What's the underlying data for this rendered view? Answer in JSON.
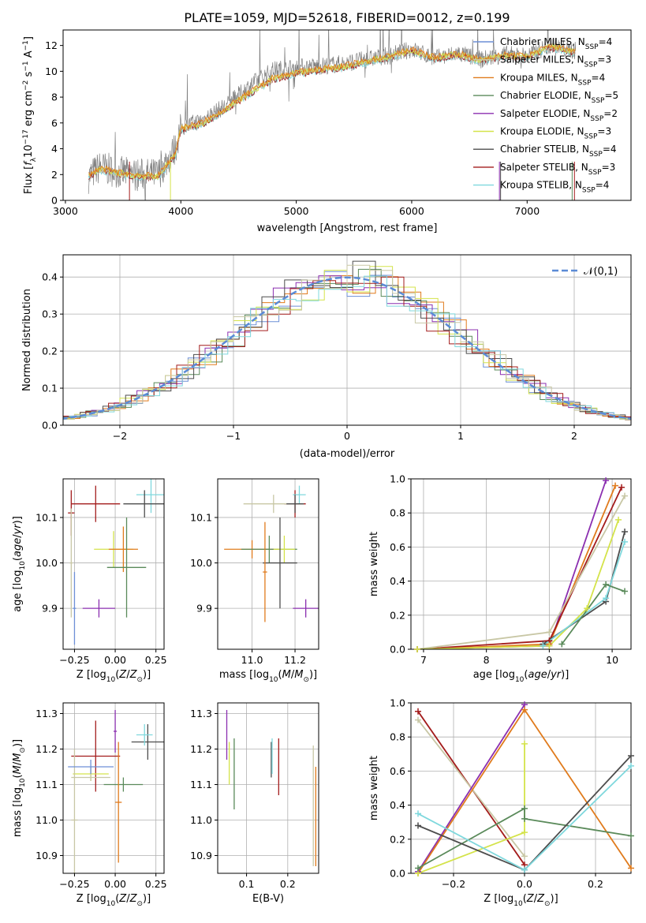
{
  "title": "PLATE=1059, MJD=52618, FIBERID=0012, z=0.199",
  "models": [
    {
      "name": "Chabrier MILES",
      "n": "4",
      "color": "#6d8fd6"
    },
    {
      "name": "Salpeter MILES",
      "n": "3",
      "color": "#c8c7a5"
    },
    {
      "name": "Kroupa MILES",
      "n": "4",
      "color": "#e07b1d"
    },
    {
      "name": "Chabrier ELODIE",
      "n": "5",
      "color": "#5a8a5a"
    },
    {
      "name": "Salpeter ELODIE",
      "n": "2",
      "color": "#8b2fb0"
    },
    {
      "name": "Kroupa ELODIE",
      "n": "3",
      "color": "#d4e34a"
    },
    {
      "name": "Chabrier STELIB",
      "n": "4",
      "color": "#4d4d4d"
    },
    {
      "name": "Salpeter STELIB",
      "n": "3",
      "color": "#a31c1c"
    },
    {
      "name": "Kroupa STELIB",
      "n": "4",
      "color": "#7fd8dd"
    }
  ],
  "chart_data": [
    {
      "type": "line",
      "xlabel": "wavelength [Angstrom, rest frame]",
      "ylabel": "Flux [f_λ 10^-17 erg cm^-2 s^-1 A^-1]",
      "xlim": [
        2980,
        7900
      ],
      "ylim": [
        0,
        13.2
      ],
      "xticks": [
        3000,
        4000,
        5000,
        6000,
        7000
      ],
      "yticks": [
        0,
        2,
        4,
        6,
        8,
        10,
        12
      ],
      "legend": "right",
      "data_spectrum": {
        "x": [
          3200,
          3300,
          3450,
          3600,
          3800,
          3950,
          4000,
          4200,
          4400,
          4600,
          4800,
          5000,
          5200,
          5400,
          5600,
          5800,
          6000,
          6200,
          6400,
          6600,
          6800,
          7000,
          7200,
          7400
        ],
        "y": [
          1.8,
          2.6,
          2.2,
          2.0,
          2.0,
          4.0,
          5.6,
          6.3,
          7.4,
          8.9,
          10.1,
          10.3,
          10.4,
          10.6,
          10.9,
          11.2,
          11.7,
          11.0,
          11.4,
          10.9,
          11.3,
          11.2,
          12.0,
          11.6
        ]
      },
      "model_spectrum": {
        "x": [
          3200,
          3300,
          3450,
          3600,
          3800,
          3950,
          4000,
          4200,
          4400,
          4600,
          4800,
          5000,
          5200,
          5400,
          5600,
          5800,
          6000,
          6200,
          6400,
          6600,
          6800,
          7000,
          7200,
          7400
        ],
        "y": [
          1.9,
          2.4,
          2.1,
          1.9,
          1.8,
          3.5,
          5.5,
          6.0,
          7.1,
          8.3,
          9.4,
          9.8,
          10.1,
          10.3,
          10.7,
          11.1,
          11.6,
          11.0,
          11.3,
          10.8,
          11.2,
          11.1,
          11.9,
          11.5
        ]
      }
    },
    {
      "type": "histogram",
      "xlabel": "(data-model)/error",
      "ylabel": "Normed distribution",
      "xlim": [
        -2.5,
        2.5
      ],
      "ylim": [
        0,
        0.46
      ],
      "xticks": [
        -2,
        -1,
        0,
        1,
        2
      ],
      "yticks": [
        0,
        0.1,
        0.2,
        0.3,
        0.4
      ],
      "gaussian_label": "𝒩(0,1)",
      "legend": "top-right"
    },
    {
      "type": "scatter",
      "xlabel": "Z [log10(Z/Z⊙)]",
      "ylabel": "age  [log10(age/yr)]",
      "xlim": [
        -0.32,
        0.3
      ],
      "ylim": [
        9.81,
        10.185
      ],
      "xticks": [
        -0.25,
        0.0,
        0.25
      ],
      "yticks": [
        9.9,
        10.0,
        10.1
      ],
      "points": [
        {
          "x": -0.12,
          "y": 10.13,
          "xe": 0.15,
          "ye": 0.04,
          "c": 7
        },
        {
          "x": 0.22,
          "y": 10.15,
          "xe": 0.09,
          "ye": 0.04,
          "c": 8
        },
        {
          "x": 0.18,
          "y": 10.13,
          "xe": 0.13,
          "ye": 0.03,
          "c": 6
        },
        {
          "x": -0.27,
          "y": 10.11,
          "xe": 0.02,
          "ye": 0.05,
          "c": 7
        },
        {
          "x": -0.01,
          "y": 10.03,
          "xe": 0.12,
          "ye": 0.04,
          "c": 5
        },
        {
          "x": 0.05,
          "y": 10.03,
          "xe": 0.09,
          "ye": 0.05,
          "c": 2
        },
        {
          "x": 0.07,
          "y": 9.99,
          "xe": 0.12,
          "ye": 0.11,
          "c": 3
        },
        {
          "x": -0.25,
          "y": 9.9,
          "xe": 0.01,
          "ye": 0.08,
          "c": 0
        },
        {
          "x": -0.1,
          "y": 9.9,
          "xe": 0.1,
          "ye": 0.02,
          "c": 4
        },
        {
          "x": -0.27,
          "y": 10.0,
          "xe": 0.01,
          "ye": 0.12,
          "c": 1
        }
      ]
    },
    {
      "type": "scatter",
      "xlabel": "mass [log10(M/M⊙)]",
      "ylabel": "",
      "xlim": [
        10.84,
        11.31
      ],
      "ylim": [
        9.81,
        10.185
      ],
      "xticks": [
        11.0,
        11.2
      ],
      "yticks": [
        9.9,
        10.0,
        10.1
      ],
      "points": [
        {
          "x": 11.2,
          "y": 10.13,
          "xe": 0.05,
          "ye": 0.03,
          "c": 7
        },
        {
          "x": 11.22,
          "y": 10.15,
          "xe": 0.03,
          "ye": 0.02,
          "c": 8
        },
        {
          "x": 11.1,
          "y": 10.13,
          "xe": 0.14,
          "ye": 0.02,
          "c": 1
        },
        {
          "x": 11.2,
          "y": 10.13,
          "xe": 0.04,
          "ye": 0.02,
          "c": 6
        },
        {
          "x": 11.0,
          "y": 10.03,
          "xe": 0.13,
          "ye": 0.02,
          "c": 2
        },
        {
          "x": 11.08,
          "y": 10.03,
          "xe": 0.13,
          "ye": 0.03,
          "c": 3
        },
        {
          "x": 11.15,
          "y": 10.03,
          "xe": 0.05,
          "ye": 0.03,
          "c": 5
        },
        {
          "x": 11.13,
          "y": 10.0,
          "xe": 0.08,
          "ye": 0.1,
          "c": 6
        },
        {
          "x": 11.06,
          "y": 9.98,
          "xe": 0.01,
          "ye": 0.11,
          "c": 2
        },
        {
          "x": 11.25,
          "y": 9.9,
          "xe": 0.06,
          "ye": 0.02,
          "c": 4
        }
      ]
    },
    {
      "type": "line",
      "xlabel": "age  [log10(age/yr)]",
      "ylabel": "mass weight",
      "xlim": [
        6.8,
        10.3
      ],
      "ylim": [
        0,
        1
      ],
      "xticks": [
        7,
        8,
        9,
        10
      ],
      "yticks": [
        0.0,
        0.2,
        0.4,
        0.6,
        0.8,
        1.0
      ],
      "series": [
        {
          "c": 4,
          "x": [
            6.9,
            9.0,
            9.9
          ],
          "y": [
            0.0,
            0.02,
            0.99
          ]
        },
        {
          "c": 2,
          "x": [
            6.9,
            9.0,
            10.05
          ],
          "y": [
            0.0,
            0.03,
            0.96
          ]
        },
        {
          "c": 7,
          "x": [
            6.9,
            9.0,
            10.15
          ],
          "y": [
            0.0,
            0.05,
            0.95
          ]
        },
        {
          "c": 1,
          "x": [
            6.9,
            9.0,
            10.2
          ],
          "y": [
            0.0,
            0.1,
            0.9
          ]
        },
        {
          "c": 5,
          "x": [
            6.9,
            9.0,
            9.6,
            10.1
          ],
          "y": [
            0.0,
            0.02,
            0.24,
            0.76
          ]
        },
        {
          "c": 6,
          "x": [
            8.9,
            9.9,
            10.2
          ],
          "y": [
            0.03,
            0.28,
            0.69
          ]
        },
        {
          "c": 8,
          "x": [
            8.9,
            9.9,
            10.2
          ],
          "y": [
            0.02,
            0.3,
            0.63
          ]
        },
        {
          "c": 3,
          "x": [
            9.2,
            9.9,
            10.2
          ],
          "y": [
            0.03,
            0.38,
            0.34
          ]
        }
      ]
    },
    {
      "type": "errorbar",
      "xlabel": "Z [log10(Z/Z⊙)]",
      "ylabel": "mass [log10(M/M⊙)]",
      "xlim": [
        -0.32,
        0.3
      ],
      "ylim": [
        10.85,
        11.33
      ],
      "xticks": [
        -0.25,
        0.0,
        0.25
      ],
      "yticks": [
        10.9,
        11.0,
        11.1,
        11.2,
        11.3
      ],
      "points": [
        {
          "x": -0.12,
          "y": 11.18,
          "xe": 0.15,
          "ye": 0.1,
          "c": 7
        },
        {
          "x": 0.2,
          "y": 11.22,
          "xe": 0.1,
          "ye": 0.05,
          "c": 6
        },
        {
          "x": 0.18,
          "y": 11.24,
          "xe": 0.05,
          "ye": 0.03,
          "c": 8
        },
        {
          "x": -0.15,
          "y": 11.13,
          "xe": 0.11,
          "ye": 0.02,
          "c": 5
        },
        {
          "x": 0.0,
          "y": 11.25,
          "xe": 0.01,
          "ye": 0.06,
          "c": 4
        },
        {
          "x": -0.15,
          "y": 11.12,
          "xe": 0.12,
          "ye": 0.01,
          "c": 1
        },
        {
          "x": 0.05,
          "y": 11.1,
          "xe": 0.12,
          "ye": 0.02,
          "c": 3
        },
        {
          "x": -0.25,
          "y": 11.0,
          "xe": 0.02,
          "ye": 0.2,
          "c": 1
        },
        {
          "x": -0.15,
          "y": 11.15,
          "xe": 0.14,
          "ye": 0.02,
          "c": 0
        },
        {
          "x": 0.02,
          "y": 11.05,
          "xe": 0.02,
          "ye": 0.17,
          "c": 2
        }
      ]
    },
    {
      "type": "errorbar",
      "xlabel": "E(B-V)",
      "ylabel": "",
      "xlim": [
        0.03,
        0.275
      ],
      "ylim": [
        10.85,
        11.33
      ],
      "xticks": [
        0.1,
        0.2
      ],
      "yticks": [
        10.9,
        11.0,
        11.1,
        11.2,
        11.3
      ],
      "points": [
        {
          "x": 0.052,
          "y": 11.24,
          "ye": 0.07,
          "c": 4
        },
        {
          "x": 0.058,
          "y": 11.16,
          "ye": 0.06,
          "c": 5
        },
        {
          "x": 0.07,
          "y": 11.13,
          "ye": 0.1,
          "c": 3
        },
        {
          "x": 0.16,
          "y": 11.17,
          "ye": 0.05,
          "c": 6
        },
        {
          "x": 0.162,
          "y": 11.18,
          "ye": 0.05,
          "c": 8
        },
        {
          "x": 0.178,
          "y": 11.15,
          "ye": 0.08,
          "c": 7
        },
        {
          "x": 0.262,
          "y": 11.04,
          "ye": 0.17,
          "c": 1
        },
        {
          "x": 0.268,
          "y": 11.01,
          "ye": 0.14,
          "c": 2
        }
      ]
    },
    {
      "type": "line",
      "xlabel": "Z [log10(Z/Z⊙)]",
      "ylabel": "mass weight",
      "xlim": [
        -0.32,
        0.3
      ],
      "ylim": [
        0,
        1
      ],
      "xticks": [
        -0.2,
        0.0,
        0.2
      ],
      "yticks": [
        0.0,
        0.2,
        0.4,
        0.6,
        0.8,
        1.0
      ],
      "series": [
        {
          "c": 7,
          "x": [
            -0.3,
            0.0
          ],
          "y": [
            0.95,
            0.05
          ]
        },
        {
          "c": 1,
          "x": [
            -0.3,
            0.0
          ],
          "y": [
            0.9,
            0.1
          ]
        },
        {
          "c": 4,
          "x": [
            -0.3,
            0.0
          ],
          "y": [
            0.01,
            0.99
          ]
        },
        {
          "c": 2,
          "x": [
            -0.3,
            0.0,
            0.3
          ],
          "y": [
            0.0,
            0.96,
            0.03
          ]
        },
        {
          "c": 5,
          "x": [
            -0.3,
            0.0,
            0.0
          ],
          "y": [
            0.0,
            0.24,
            0.76
          ]
        },
        {
          "c": 3,
          "x": [
            -0.3,
            0.0,
            0.0,
            0.3
          ],
          "y": [
            0.03,
            0.38,
            0.32,
            0.22
          ]
        },
        {
          "c": 6,
          "x": [
            -0.3,
            0.0,
            0.3
          ],
          "y": [
            0.28,
            0.02,
            0.69
          ]
        },
        {
          "c": 8,
          "x": [
            -0.3,
            0.0,
            0.3
          ],
          "y": [
            0.35,
            0.02,
            0.63
          ]
        }
      ]
    }
  ]
}
